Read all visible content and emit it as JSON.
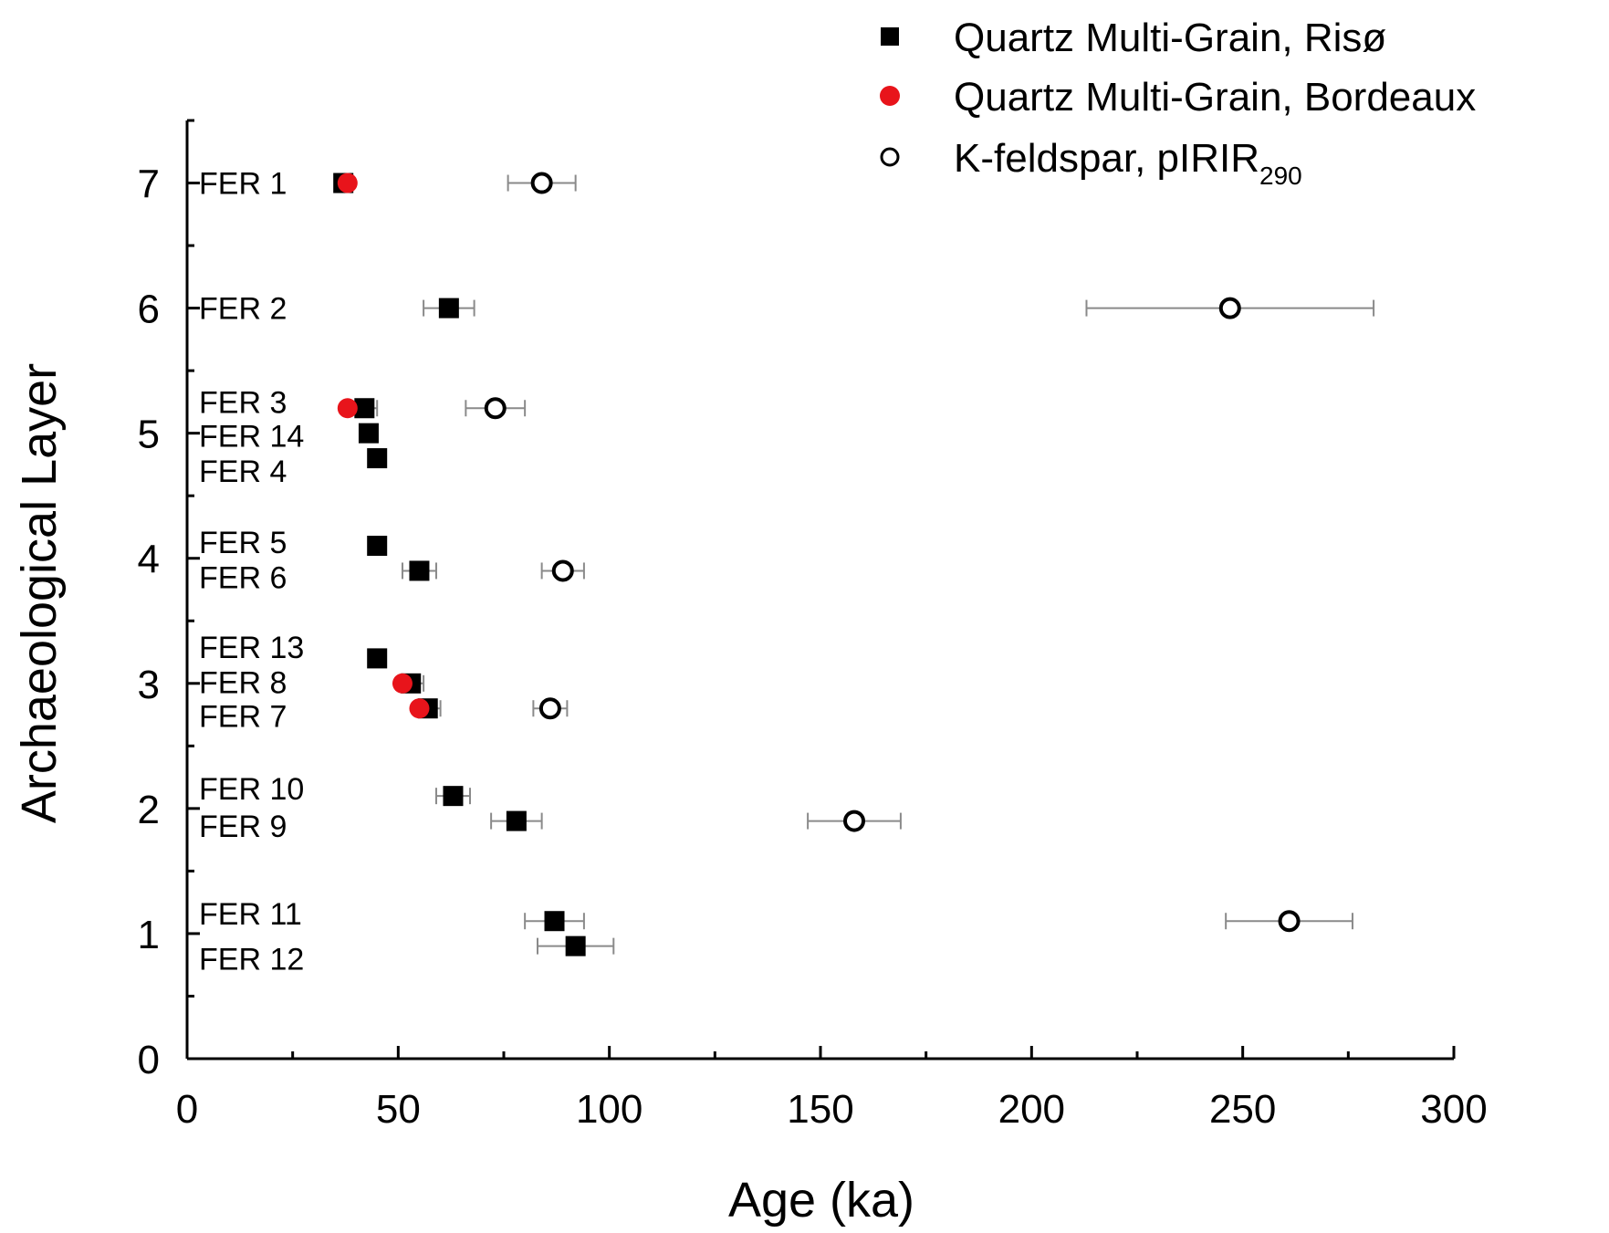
{
  "chart_data": {
    "type": "scatter",
    "xlabel": "Age (ka)",
    "ylabel": "Archaeological Layer",
    "xlim": [
      0,
      300
    ],
    "ylim": [
      0,
      7.5
    ],
    "xticks": [
      0,
      50,
      100,
      150,
      200,
      250,
      300
    ],
    "yticks": [
      0,
      1,
      2,
      3,
      4,
      5,
      6,
      7
    ],
    "legend_position": "top-right",
    "error_bars": "horizontal",
    "sample_labels": [
      {
        "text": "FER 1",
        "y": 7.0
      },
      {
        "text": "FER 2",
        "y": 6.0
      },
      {
        "text": "FER 3",
        "y": 5.25
      },
      {
        "text": "FER 14",
        "y": 4.98
      },
      {
        "text": "FER 4",
        "y": 4.7
      },
      {
        "text": "FER 5",
        "y": 4.13
      },
      {
        "text": "FER 6",
        "y": 3.85
      },
      {
        "text": "FER 13",
        "y": 3.29
      },
      {
        "text": "FER 8",
        "y": 3.01
      },
      {
        "text": "FER 7",
        "y": 2.74
      },
      {
        "text": "FER 10",
        "y": 2.16
      },
      {
        "text": "FER 9",
        "y": 1.86
      },
      {
        "text": "FER 11",
        "y": 1.16
      },
      {
        "text": "FER 12",
        "y": 0.8
      }
    ],
    "series": [
      {
        "name": "Quartz Multi-Grain, Risø",
        "marker": "square",
        "color": "#000000",
        "points": [
          {
            "sample": "FER 1",
            "x": 37,
            "y": 7.0,
            "err": 2
          },
          {
            "sample": "FER 2",
            "x": 62,
            "y": 6.0,
            "err": 6
          },
          {
            "sample": "FER 3",
            "x": 42,
            "y": 5.2,
            "err": 3
          },
          {
            "sample": "FER 14",
            "x": 43,
            "y": 5.0,
            "err": 2
          },
          {
            "sample": "FER 4",
            "x": 45,
            "y": 4.8,
            "err": 2
          },
          {
            "sample": "FER 5",
            "x": 45,
            "y": 4.1,
            "err": 2
          },
          {
            "sample": "FER 6",
            "x": 55,
            "y": 3.9,
            "err": 4
          },
          {
            "sample": "FER 13",
            "x": 45,
            "y": 3.2,
            "err": 2
          },
          {
            "sample": "FER 8",
            "x": 53,
            "y": 3.0,
            "err": 3
          },
          {
            "sample": "FER 7",
            "x": 57,
            "y": 2.8,
            "err": 3
          },
          {
            "sample": "FER 10",
            "x": 63,
            "y": 2.1,
            "err": 4
          },
          {
            "sample": "FER 9",
            "x": 78,
            "y": 1.9,
            "err": 6
          },
          {
            "sample": "FER 11",
            "x": 87,
            "y": 1.1,
            "err": 7
          },
          {
            "sample": "FER 12",
            "x": 92,
            "y": 0.9,
            "err": 9
          }
        ]
      },
      {
        "name": "Quartz Multi-Grain, Bordeaux",
        "marker": "circle-filled",
        "color": "#e8141b",
        "points": [
          {
            "sample": "FER 1",
            "x": 38,
            "y": 7.0
          },
          {
            "sample": "FER 3",
            "x": 38,
            "y": 5.2
          },
          {
            "sample": "FER 8",
            "x": 51,
            "y": 3.0
          },
          {
            "sample": "FER 7",
            "x": 55,
            "y": 2.8
          }
        ]
      },
      {
        "name": "K-feldspar, pIRIR",
        "name_subscript": "290",
        "marker": "circle-open",
        "color": "#000000",
        "points": [
          {
            "sample": "FER 1",
            "x": 84,
            "y": 7.0,
            "err": 8
          },
          {
            "sample": "FER 2",
            "x": 247,
            "y": 6.0,
            "err": 34
          },
          {
            "sample": "FER 3",
            "x": 73,
            "y": 5.2,
            "err": 7
          },
          {
            "sample": "FER 6",
            "x": 89,
            "y": 3.9,
            "err": 5
          },
          {
            "sample": "FER 7",
            "x": 86,
            "y": 2.8,
            "err": 4
          },
          {
            "sample": "FER 9",
            "x": 158,
            "y": 1.9,
            "err": 11
          },
          {
            "sample": "FER 11",
            "x": 261,
            "y": 1.1,
            "err": 15
          }
        ]
      }
    ]
  }
}
